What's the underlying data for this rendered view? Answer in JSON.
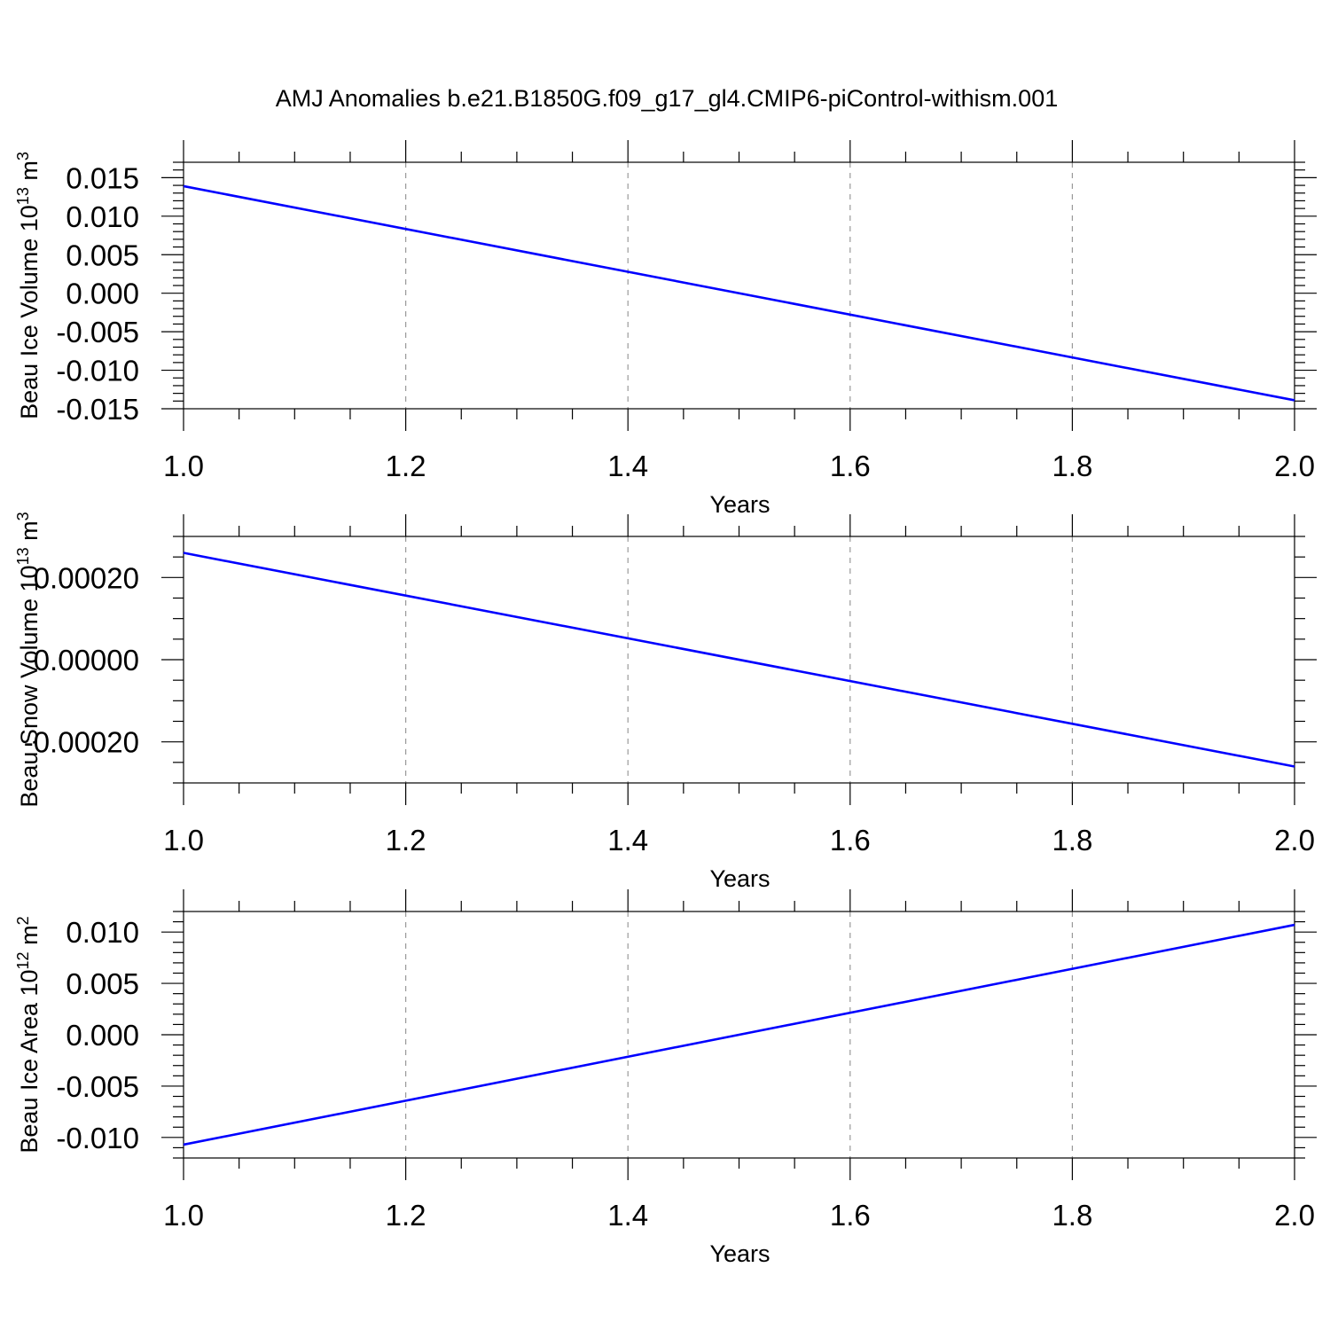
{
  "title": "AMJ Anomalies b.e21.B1850G.f09_g17_gl4.CMIP6-piControl-withism.001",
  "colors": {
    "series": "#0000ff",
    "grid": "#999999"
  },
  "chart_data": [
    {
      "type": "line",
      "ylabel_main": "Beau Ice Volume 10",
      "ylabel_exp": "13",
      "ylabel_unit": "m",
      "ylabel_unit_exp": "3",
      "xlabel": "Years",
      "xlim": [
        1.0,
        2.0
      ],
      "ylim": [
        -0.015,
        0.017
      ],
      "xticks": [
        1.0,
        1.2,
        1.4,
        1.6,
        1.8,
        2.0
      ],
      "xtick_labels": [
        "1.0",
        "1.2",
        "1.4",
        "1.6",
        "1.8",
        "2.0"
      ],
      "yticks": [
        0.015,
        0.01,
        0.005,
        0.0,
        -0.005,
        -0.01,
        -0.015
      ],
      "ytick_labels": [
        "0.015",
        "0.010",
        "0.005",
        "0.000",
        "-0.005",
        "-0.010",
        "-0.015"
      ],
      "yminor_step": 0.001,
      "grid": "x-dashed",
      "series": [
        {
          "x": [
            1.0,
            2.0
          ],
          "y": [
            0.0139,
            -0.0139
          ]
        }
      ]
    },
    {
      "type": "line",
      "ylabel_main": "Beau Snow Volume 10",
      "ylabel_exp": "13",
      "ylabel_unit": "m",
      "ylabel_unit_exp": "3",
      "xlabel": "Years",
      "xlim": [
        1.0,
        2.0
      ],
      "ylim": [
        -0.0003,
        0.0003
      ],
      "xticks": [
        1.0,
        1.2,
        1.4,
        1.6,
        1.8,
        2.0
      ],
      "xtick_labels": [
        "1.0",
        "1.2",
        "1.4",
        "1.6",
        "1.8",
        "2.0"
      ],
      "yticks": [
        0.0002,
        0.0,
        -0.0002
      ],
      "ytick_labels": [
        "0.00020",
        "0.00000",
        "-0.00020"
      ],
      "yminor_step": 5e-05,
      "grid": "x-dashed",
      "series": [
        {
          "x": [
            1.0,
            2.0
          ],
          "y": [
            0.00026,
            -0.00026
          ]
        }
      ]
    },
    {
      "type": "line",
      "ylabel_main": "Beau Ice Area 10",
      "ylabel_exp": "12",
      "ylabel_unit": "m",
      "ylabel_unit_exp": "2",
      "xlabel": "Years",
      "xlim": [
        1.0,
        2.0
      ],
      "ylim": [
        -0.012,
        0.012
      ],
      "xticks": [
        1.0,
        1.2,
        1.4,
        1.6,
        1.8,
        2.0
      ],
      "xtick_labels": [
        "1.0",
        "1.2",
        "1.4",
        "1.6",
        "1.8",
        "2.0"
      ],
      "yticks": [
        0.01,
        0.005,
        0.0,
        -0.005,
        -0.01
      ],
      "ytick_labels": [
        "0.010",
        "0.005",
        "0.000",
        "-0.005",
        "-0.010"
      ],
      "yminor_step": 0.001,
      "grid": "x-dashed",
      "series": [
        {
          "x": [
            1.0,
            2.0
          ],
          "y": [
            -0.0107,
            0.0107
          ]
        }
      ]
    }
  ]
}
